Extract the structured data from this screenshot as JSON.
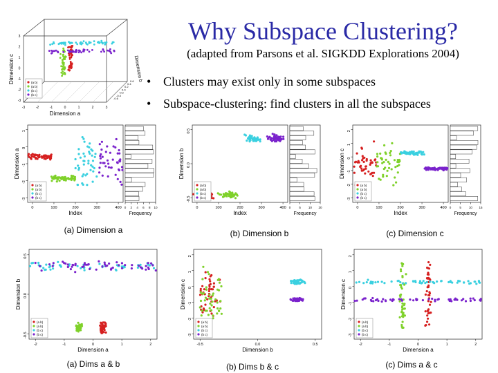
{
  "slide": {
    "title": "Why Subspace Clustering?",
    "subtitle": "(adapted from Parsons et al. SIGKDD Explorations 2004)",
    "bullets": [
      "Clusters may exist only in some subspaces",
      "Subspace-clustering: find clusters in all the subspaces"
    ]
  },
  "colors": {
    "title": "#2a2aa6",
    "a_b": "#d62020",
    "a_b2": "#7fd12a",
    "b_c": "#3ad0e0",
    "b_c2": "#7a22cc"
  },
  "chart_data": [
    {
      "id": "3d",
      "type": "scatter",
      "xlabel": "Dimension a",
      "ylabel": "Dimension c",
      "zlabel": "Dimension b",
      "xticks": [
        "-3",
        "-2",
        "-1",
        "0",
        "1",
        "2",
        "3"
      ],
      "yticks": [
        "3",
        "2",
        "1",
        "0",
        "-1",
        "-2",
        "-3"
      ],
      "zticks": [
        "-0.6",
        "-0.4",
        "-0.2",
        "0.0",
        "0.2",
        "0.4",
        "0.6"
      ],
      "legend": [
        "(a b)",
        "(a b)",
        "(b c)",
        "(b c)"
      ]
    },
    {
      "id": "a",
      "type": "scatter",
      "caption": "(a) Dimension a",
      "xlabel": "Index",
      "ylabel": "Dimension a",
      "histlabel": "Frequency",
      "xticks": [
        "0",
        "100",
        "200",
        "300",
        "400"
      ],
      "histticks": [
        "0",
        "2",
        "4",
        "6",
        "8",
        "10"
      ],
      "yticks": [
        "1",
        "0",
        "-1",
        "-2",
        "-3"
      ],
      "legend": [
        "(a b)",
        "(a b)",
        "(b c)",
        "(b c)"
      ],
      "xlim": [
        0,
        400
      ],
      "ylim": [
        -3,
        1.2
      ],
      "series": [
        {
          "name": "(a b)",
          "color": "#d62020",
          "kind": "band",
          "x": [
            1,
            100
          ],
          "y": [
            -0.7,
            -0.3
          ]
        },
        {
          "name": "(a b)",
          "color": "#7fd12a",
          "kind": "band",
          "x": [
            100,
            200
          ],
          "y": [
            -1.9,
            -1.5
          ]
        },
        {
          "name": "(b c)",
          "color": "#3ad0e0",
          "kind": "spread",
          "x": [
            200,
            300
          ],
          "y": [
            -2.6,
            0.9
          ]
        },
        {
          "name": "(b c)",
          "color": "#7a22cc",
          "kind": "spread",
          "x": [
            300,
            400
          ],
          "y": [
            -2.6,
            0.9
          ]
        }
      ]
    },
    {
      "id": "b",
      "type": "scatter",
      "caption": "(b) Dimension b",
      "xlabel": "Index",
      "ylabel": "Dimension b",
      "histlabel": "Frequency",
      "xticks": [
        "0",
        "100",
        "200",
        "300",
        "400"
      ],
      "histticks": [
        "0",
        "5",
        "10",
        "20"
      ],
      "yticks": [
        "0.5",
        "0.0",
        "-0.5"
      ],
      "legend": [
        "(a b)",
        "(a b)",
        "(b c)",
        "(b c)"
      ],
      "xlim": [
        0,
        400
      ],
      "ylim": [
        -0.75,
        0.75
      ],
      "series": [
        {
          "name": "(a b)",
          "color": "#d62020",
          "kind": "blob",
          "x": [
            1,
            100
          ],
          "y": [
            -0.72,
            -0.5
          ]
        },
        {
          "name": "(a b)",
          "color": "#7fd12a",
          "kind": "blob",
          "x": [
            100,
            200
          ],
          "y": [
            -0.7,
            -0.5
          ]
        },
        {
          "name": "(b c)",
          "color": "#3ad0e0",
          "kind": "blob",
          "x": [
            200,
            300
          ],
          "y": [
            0.38,
            0.6
          ]
        },
        {
          "name": "(b c)",
          "color": "#7a22cc",
          "kind": "blob",
          "x": [
            300,
            400
          ],
          "y": [
            0.38,
            0.6
          ]
        }
      ]
    },
    {
      "id": "c",
      "type": "scatter",
      "caption": "(c) Dimension c",
      "xlabel": "Index",
      "ylabel": "Dimension c",
      "histlabel": "Frequency",
      "xticks": [
        "0",
        "100",
        "200",
        "300",
        "400"
      ],
      "histticks": [
        "0",
        "5",
        "10",
        "15"
      ],
      "yticks": [
        "2",
        "1",
        "0",
        "-1",
        "-2",
        "-3"
      ],
      "legend": [
        "(a b)",
        "(a b)",
        "(b c)",
        "(b c)"
      ],
      "xlim": [
        0,
        400
      ],
      "ylim": [
        -3,
        2.6
      ],
      "series": [
        {
          "name": "(a b)",
          "color": "#d62020",
          "kind": "spread",
          "x": [
            1,
            100
          ],
          "y": [
            -2.3,
            1.8
          ]
        },
        {
          "name": "(a b)",
          "color": "#7fd12a",
          "kind": "spread",
          "x": [
            100,
            200
          ],
          "y": [
            -2.3,
            1.8
          ]
        },
        {
          "name": "(b c)",
          "color": "#3ad0e0",
          "kind": "band",
          "x": [
            200,
            300
          ],
          "y": [
            0.4,
            0.75
          ]
        },
        {
          "name": "(b c)",
          "color": "#7a22cc",
          "kind": "band",
          "x": [
            300,
            400
          ],
          "y": [
            -0.7,
            -0.4
          ]
        }
      ]
    },
    {
      "id": "ab",
      "type": "scatter",
      "caption": "(a) Dims a & b",
      "xlabel": "Dimension a",
      "ylabel": "Dimension b",
      "xticks": [
        "-2",
        "-1",
        "0",
        "1",
        "2"
      ],
      "yticks": [
        "0.5",
        "0.0",
        "-0.5"
      ],
      "legend": [
        "(a b)",
        "(a b)",
        "(b c)",
        "(b c)"
      ],
      "xlim": [
        -2.5,
        2.5
      ],
      "ylim": [
        -0.8,
        0.8
      ],
      "series": [
        {
          "name": "(a b)",
          "color": "#d62020",
          "kind": "blob",
          "x": [
            0.2,
            0.55
          ],
          "y": [
            -0.75,
            -0.45
          ]
        },
        {
          "name": "(a b)",
          "color": "#7fd12a",
          "kind": "blob",
          "x": [
            -0.7,
            -0.4
          ],
          "y": [
            -0.7,
            -0.48
          ]
        },
        {
          "name": "(b c)",
          "color": "#3ad0e0",
          "kind": "band",
          "x": [
            -2.5,
            2.5
          ],
          "y": [
            0.38,
            0.62
          ]
        },
        {
          "name": "(b c)",
          "color": "#7a22cc",
          "kind": "band",
          "x": [
            -2.5,
            2.5
          ],
          "y": [
            0.38,
            0.62
          ]
        }
      ]
    },
    {
      "id": "bc",
      "type": "scatter",
      "caption": "(b) Dims b & c",
      "xlabel": "Dimension b",
      "ylabel": "Dimension c",
      "xticks": [
        "-0.5",
        "0.0",
        "0.5"
      ],
      "yticks": [
        "2",
        "1",
        "0",
        "-1",
        "-2",
        "-3"
      ],
      "legend": [
        "(a b)",
        "(a b)",
        "(b c)",
        "(b c)"
      ],
      "xlim": [
        -0.8,
        0.8
      ],
      "ylim": [
        -3,
        2.6
      ],
      "series": [
        {
          "name": "(a b)",
          "color": "#d62020",
          "kind": "spread",
          "x": [
            -0.72,
            -0.45
          ],
          "y": [
            -2.3,
            1.8
          ]
        },
        {
          "name": "(a b)",
          "color": "#7fd12a",
          "kind": "spread",
          "x": [
            -0.72,
            -0.45
          ],
          "y": [
            -2.3,
            1.8
          ]
        },
        {
          "name": "(b c)",
          "color": "#3ad0e0",
          "kind": "blob",
          "x": [
            0.38,
            0.62
          ],
          "y": [
            0.4,
            0.75
          ]
        },
        {
          "name": "(b c)",
          "color": "#7a22cc",
          "kind": "blob",
          "x": [
            0.38,
            0.62
          ],
          "y": [
            -0.7,
            -0.4
          ]
        }
      ]
    },
    {
      "id": "ac",
      "type": "scatter",
      "caption": "(c) Dims a & c",
      "xlabel": "Dimension a",
      "ylabel": "Dimension c",
      "xticks": [
        "-2",
        "-1",
        "0",
        "1",
        "2"
      ],
      "yticks": [
        "2",
        "1",
        "0",
        "-1",
        "-2",
        "-3"
      ],
      "legend": [
        "(a b)",
        "(a b)",
        "(b c)",
        "(b c)"
      ],
      "xlim": [
        -2.5,
        2.5
      ],
      "ylim": [
        -3,
        2.6
      ],
      "series": [
        {
          "name": "(a b)",
          "color": "#d62020",
          "kind": "column",
          "x": [
            0.25,
            0.55
          ],
          "y": [
            -2.3,
            1.8
          ]
        },
        {
          "name": "(a b)",
          "color": "#7fd12a",
          "kind": "column",
          "x": [
            -0.75,
            -0.45
          ],
          "y": [
            -2.3,
            1.8
          ]
        },
        {
          "name": "(b c)",
          "color": "#3ad0e0",
          "kind": "band",
          "x": [
            -2.5,
            2.5
          ],
          "y": [
            0.4,
            0.75
          ]
        },
        {
          "name": "(b c)",
          "color": "#7a22cc",
          "kind": "band",
          "x": [
            -2.5,
            2.5
          ],
          "y": [
            -0.7,
            -0.4
          ]
        }
      ]
    }
  ]
}
